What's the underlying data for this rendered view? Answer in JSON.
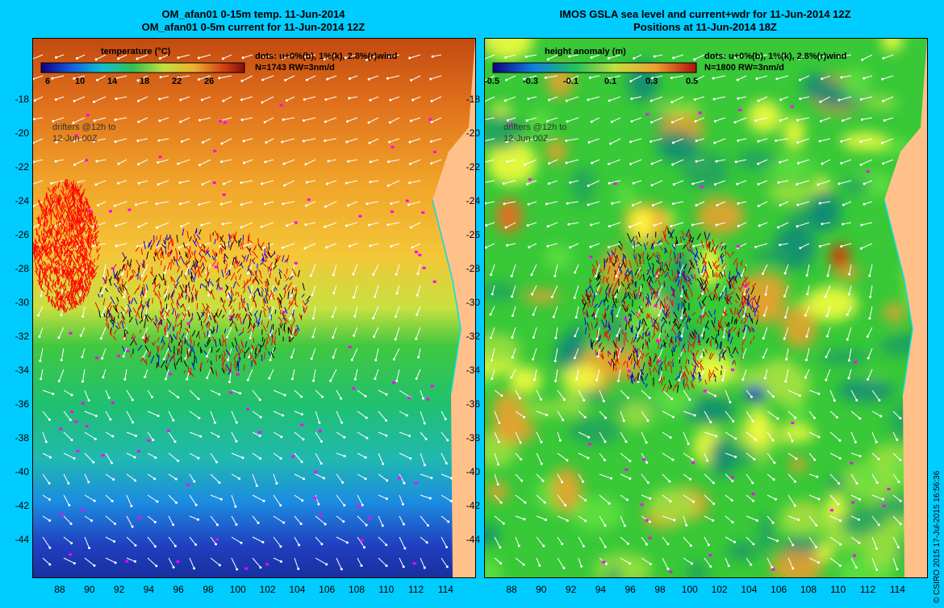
{
  "left": {
    "title1": "OM_afan01 0-15m temp. 11-Jun-2014",
    "title2": "OM_afan01 0-5m current for 11-Jun-2014 12Z",
    "colorbar_title": "temperature (°C)",
    "colorbar_ticks": [
      "6",
      "10",
      "14",
      "18",
      "22",
      "26"
    ],
    "note1": "dots: u+0%(b), 1%(k), 2.8%(r)wind",
    "note2": "N=1743 RW=3nm/d",
    "drifters1": "drifters @12h to",
    "drifters2": "12-Jun 00Z"
  },
  "right": {
    "title1": "IMOS GSLA sea level and current+wdr for 11-Jun-2014 12Z",
    "title2": "Positions at 11-Jun-2014 18Z",
    "colorbar_title": "height anomaly (m)",
    "colorbar_ticks": [
      "-0.5",
      "-0.3",
      "-0.1",
      "0.1",
      "0.3",
      "0.5"
    ],
    "note1": "dots: u+0%(b), 1%(k), 2.8%(r)wind",
    "note2": "N=1800 RW=3nm/d",
    "drifters1": "drifters @12h to",
    "drifters2": "12-Jun 00Z"
  },
  "y_ticks": [
    "-18",
    "-20",
    "-22",
    "-24",
    "-26",
    "-28",
    "-30",
    "-32",
    "-34",
    "-36",
    "-38",
    "-40",
    "-42",
    "-44"
  ],
  "x_ticks": [
    "88",
    "90",
    "92",
    "94",
    "96",
    "98",
    "100",
    "102",
    "104",
    "106",
    "108",
    "110",
    "112",
    "114"
  ],
  "credit": "© CSIRO 2015   17-Jul-2015 16:56:36",
  "colors": {
    "background": "#00ccff",
    "land": "#ffc08a",
    "drift_red": "#ff0000",
    "drift_black": "#000000",
    "drift_blue": "#0000ff",
    "magenta": "#ff00ff"
  }
}
